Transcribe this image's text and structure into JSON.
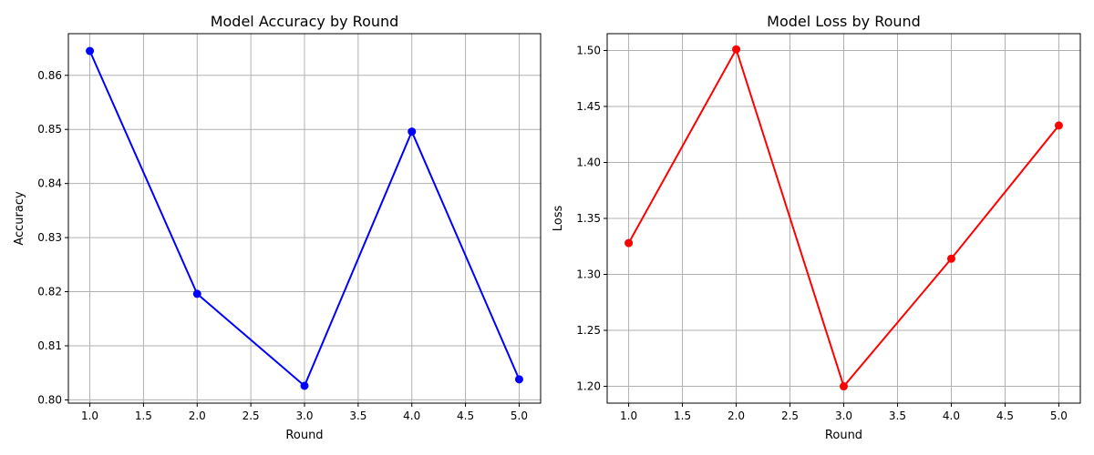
{
  "chart_data": [
    {
      "type": "line",
      "title": "Model Accuracy by Round",
      "xlabel": "Round",
      "ylabel": "Accuracy",
      "x": [
        1.0,
        2.0,
        3.0,
        4.0,
        5.0
      ],
      "series": [
        {
          "values": [
            0.8645,
            0.8196,
            0.8026,
            0.8496,
            0.8038
          ],
          "color": "#0000ff"
        }
      ],
      "xlim": [
        0.8,
        5.2
      ],
      "ylim": [
        0.7994,
        0.8677
      ],
      "xticks": [
        1.0,
        1.5,
        2.0,
        2.5,
        3.0,
        3.5,
        4.0,
        4.5,
        5.0
      ],
      "xtick_labels": [
        "1.0",
        "1.5",
        "2.0",
        "2.5",
        "3.0",
        "3.5",
        "4.0",
        "4.5",
        "5.0"
      ],
      "yticks": [
        0.8,
        0.81,
        0.82,
        0.83,
        0.84,
        0.85,
        0.86
      ],
      "ytick_labels": [
        "0.80",
        "0.81",
        "0.82",
        "0.83",
        "0.84",
        "0.85",
        "0.86"
      ],
      "grid": true,
      "marker": "circle"
    },
    {
      "type": "line",
      "title": "Model Loss by Round",
      "xlabel": "Round",
      "ylabel": "Loss",
      "x": [
        1.0,
        2.0,
        3.0,
        4.0,
        5.0
      ],
      "series": [
        {
          "values": [
            1.328,
            1.501,
            1.2,
            1.314,
            1.433
          ],
          "color": "#ff0000"
        }
      ],
      "xlim": [
        0.8,
        5.2
      ],
      "ylim": [
        1.185,
        1.515
      ],
      "xticks": [
        1.0,
        1.5,
        2.0,
        2.5,
        3.0,
        3.5,
        4.0,
        4.5,
        5.0
      ],
      "xtick_labels": [
        "1.0",
        "1.5",
        "2.0",
        "2.5",
        "3.0",
        "3.5",
        "4.0",
        "4.5",
        "5.0"
      ],
      "yticks": [
        1.2,
        1.25,
        1.3,
        1.35,
        1.4,
        1.45,
        1.5
      ],
      "ytick_labels": [
        "1.20",
        "1.25",
        "1.30",
        "1.35",
        "1.40",
        "1.45",
        "1.50"
      ],
      "grid": true,
      "marker": "circle"
    }
  ]
}
